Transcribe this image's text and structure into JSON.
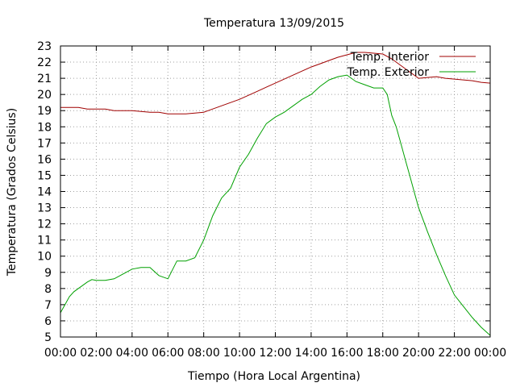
{
  "chart_data": {
    "type": "line",
    "title": "Temperatura 13/09/2015",
    "xlabel": "Tiempo (Hora Local Argentina)",
    "ylabel": "Temperatura (Grados Celsius)",
    "xlim": [
      0,
      24
    ],
    "ylim": [
      5,
      23
    ],
    "x_tick_labels": [
      "00:00",
      "02:00",
      "04:00",
      "06:00",
      "08:00",
      "10:00",
      "12:00",
      "14:00",
      "16:00",
      "18:00",
      "20:00",
      "22:00",
      "00:00"
    ],
    "y_tick_labels": [
      "5",
      "6",
      "7",
      "8",
      "9",
      "10",
      "11",
      "12",
      "13",
      "14",
      "15",
      "16",
      "17",
      "18",
      "19",
      "20",
      "21",
      "22",
      "23"
    ],
    "grid": true,
    "legend_position": "top-right",
    "series": [
      {
        "name": "Temp. Interior",
        "color": "#a00000",
        "x": [
          0,
          1,
          1.5,
          2,
          2.5,
          3,
          4,
          4.5,
          5,
          5.5,
          6,
          7,
          7.5,
          8,
          8.5,
          9,
          9.5,
          10,
          10.5,
          11,
          11.5,
          12,
          12.5,
          13,
          13.5,
          14,
          14.5,
          15,
          15.5,
          16,
          16.5,
          17,
          17.5,
          18,
          18.5,
          19,
          19.5,
          20,
          20.5,
          21,
          21.5,
          22,
          22.5,
          23,
          23.5,
          24
        ],
        "values": [
          19.2,
          19.2,
          19.1,
          19.1,
          19.1,
          19.0,
          19.0,
          18.95,
          18.9,
          18.9,
          18.8,
          18.8,
          18.85,
          18.9,
          19.1,
          19.3,
          19.5,
          19.7,
          19.95,
          20.2,
          20.45,
          20.7,
          20.95,
          21.2,
          21.45,
          21.7,
          21.9,
          22.1,
          22.3,
          22.45,
          22.6,
          22.6,
          22.55,
          22.5,
          22.2,
          21.8,
          21.4,
          21.0,
          21.05,
          21.1,
          21.0,
          20.95,
          20.9,
          20.85,
          20.75,
          20.7
        ]
      },
      {
        "name": "Temp. Exterior",
        "color": "#00a000",
        "x": [
          0,
          0.25,
          0.5,
          0.75,
          1,
          1.25,
          1.5,
          1.75,
          2,
          2.5,
          3,
          3.5,
          4,
          4.5,
          5,
          5.5,
          6,
          6.5,
          7,
          7.5,
          8,
          8.5,
          9,
          9.5,
          10,
          10.5,
          11,
          11.5,
          12,
          12.5,
          13,
          13.5,
          14,
          14.5,
          15,
          15.5,
          16,
          16.5,
          17,
          17.5,
          18,
          18.25,
          18.5,
          18.75,
          19,
          19.25,
          19.5,
          19.75,
          20,
          20.5,
          21,
          21.5,
          22,
          22.5,
          23,
          23.5,
          24
        ],
        "values": [
          6.5,
          7.0,
          7.5,
          7.8,
          8.0,
          8.2,
          8.4,
          8.55,
          8.5,
          8.5,
          8.6,
          8.9,
          9.2,
          9.3,
          9.3,
          8.8,
          8.6,
          9.7,
          9.7,
          9.9,
          11.0,
          12.5,
          13.6,
          14.2,
          15.5,
          16.3,
          17.3,
          18.2,
          18.6,
          18.9,
          19.3,
          19.7,
          20.0,
          20.5,
          20.9,
          21.1,
          21.2,
          20.8,
          20.6,
          20.4,
          20.4,
          20.0,
          18.7,
          18.0,
          17.0,
          16.0,
          15.0,
          14.0,
          13.0,
          11.5,
          10.1,
          8.8,
          7.6,
          6.9,
          6.2,
          5.6,
          5.1
        ]
      }
    ]
  }
}
